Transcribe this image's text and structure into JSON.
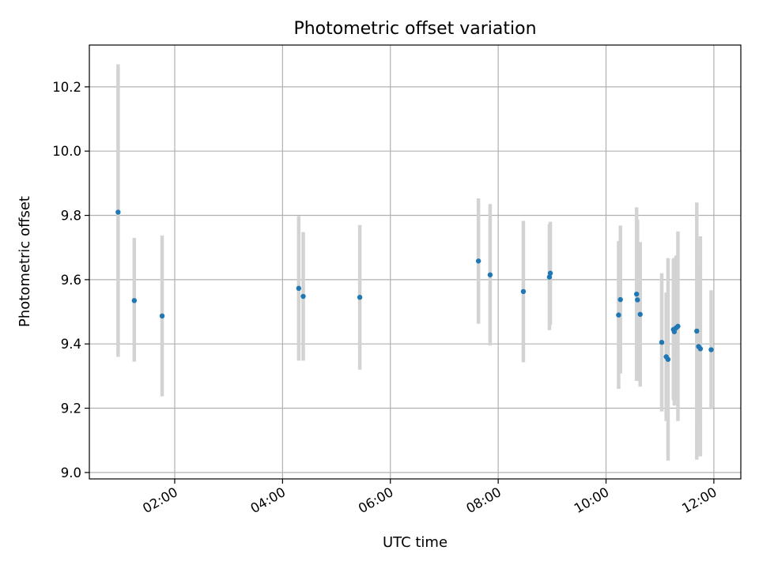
{
  "chart_data": {
    "type": "scatter",
    "title": "Photometric offset variation",
    "xlabel": "UTC time",
    "ylabel": "Photometric offset",
    "xlim": [
      "00:25",
      "12:30"
    ],
    "ylim": [
      8.98,
      10.33
    ],
    "xticks": [
      "02:00",
      "04:00",
      "06:00",
      "08:00",
      "10:00",
      "12:00"
    ],
    "yticks": [
      9.0,
      9.2,
      9.4,
      9.6,
      9.8,
      10.0,
      10.2
    ],
    "ytick_labels": [
      "9.0",
      "9.2",
      "9.4",
      "9.6",
      "9.8",
      "10.0",
      "10.2"
    ],
    "grid": true,
    "marker_color": "#1f77b4",
    "errorbar_color": "#d3d3d3",
    "points": [
      {
        "t": "00:57",
        "y": 9.81,
        "lo": 9.36,
        "hi": 10.27
      },
      {
        "t": "01:15",
        "y": 9.535,
        "lo": 9.345,
        "hi": 9.73
      },
      {
        "t": "01:46",
        "y": 9.487,
        "lo": 9.237,
        "hi": 9.737
      },
      {
        "t": "04:18",
        "y": 9.573,
        "lo": 9.348,
        "hi": 9.798
      },
      {
        "t": "04:23",
        "y": 9.548,
        "lo": 9.348,
        "hi": 9.748
      },
      {
        "t": "05:26",
        "y": 9.545,
        "lo": 9.32,
        "hi": 9.77
      },
      {
        "t": "07:38",
        "y": 9.658,
        "lo": 9.463,
        "hi": 9.853
      },
      {
        "t": "07:51",
        "y": 9.615,
        "lo": 9.395,
        "hi": 9.835
      },
      {
        "t": "08:28",
        "y": 9.563,
        "lo": 9.343,
        "hi": 9.783
      },
      {
        "t": "08:57",
        "y": 9.608,
        "lo": 9.443,
        "hi": 9.773
      },
      {
        "t": "08:58",
        "y": 9.62,
        "lo": 9.46,
        "hi": 9.78
      },
      {
        "t": "10:14",
        "y": 9.49,
        "lo": 9.26,
        "hi": 9.72
      },
      {
        "t": "10:16",
        "y": 9.538,
        "lo": 9.308,
        "hi": 9.768
      },
      {
        "t": "10:34",
        "y": 9.555,
        "lo": 9.285,
        "hi": 9.825
      },
      {
        "t": "10:35",
        "y": 9.537,
        "lo": 9.287,
        "hi": 9.787
      },
      {
        "t": "10:38",
        "y": 9.492,
        "lo": 9.267,
        "hi": 9.717
      },
      {
        "t": "11:02",
        "y": 9.405,
        "lo": 9.19,
        "hi": 9.62
      },
      {
        "t": "11:07",
        "y": 9.36,
        "lo": 9.16,
        "hi": 9.56
      },
      {
        "t": "11:09",
        "y": 9.352,
        "lo": 9.037,
        "hi": 9.667
      },
      {
        "t": "11:15",
        "y": 9.445,
        "lo": 9.225,
        "hi": 9.665
      },
      {
        "t": "11:16",
        "y": 9.438,
        "lo": 9.208,
        "hi": 9.668
      },
      {
        "t": "11:18",
        "y": 9.45,
        "lo": 9.225,
        "hi": 9.675
      },
      {
        "t": "11:20",
        "y": 9.455,
        "lo": 9.16,
        "hi": 9.75
      },
      {
        "t": "11:41",
        "y": 9.44,
        "lo": 9.04,
        "hi": 9.84
      },
      {
        "t": "11:43",
        "y": 9.392,
        "lo": 9.142,
        "hi": 9.642
      },
      {
        "t": "11:45",
        "y": 9.385,
        "lo": 9.05,
        "hi": 9.735
      },
      {
        "t": "11:57",
        "y": 9.382,
        "lo": 9.197,
        "hi": 9.567
      }
    ]
  }
}
